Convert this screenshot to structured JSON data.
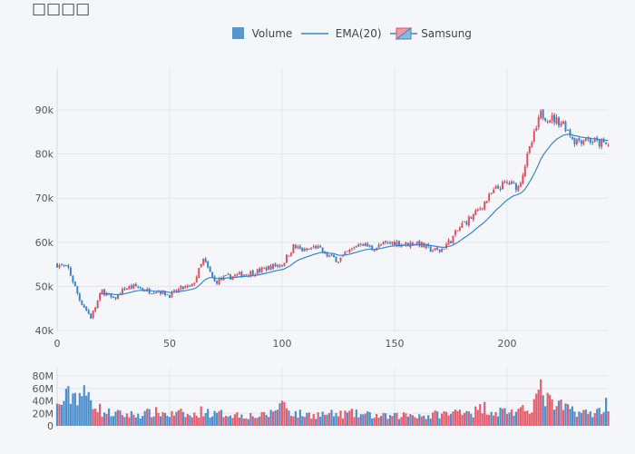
{
  "title": "□□□□",
  "legend": {
    "volume": "Volume",
    "ema": "EMA(20)",
    "price": "Samsung"
  },
  "colors": {
    "up": "#e0505f",
    "down": "#3d85c6",
    "ema": "#3d85c6",
    "grid": "#e3e5ec"
  },
  "chart_data": {
    "type": "candlestick",
    "title": "□□□□",
    "x_step": 5,
    "close_samples_k": [
      55,
      54,
      47,
      43,
      49,
      47,
      49.5,
      50,
      49,
      49,
      48,
      49.5,
      50,
      56,
      51,
      52,
      52.5,
      53,
      53.5,
      54.5,
      55,
      59,
      58,
      59,
      57,
      56,
      58,
      60,
      58.5,
      59.5,
      60,
      59.5,
      60,
      58.5,
      58,
      60.5,
      64,
      66,
      69,
      72,
      73.5,
      72.5,
      81,
      89,
      88,
      87,
      83,
      83.5,
      82.5,
      82
    ],
    "volume_samples_M": [
      30,
      48,
      52,
      45,
      22,
      20,
      18,
      18,
      20,
      22,
      18,
      20,
      15,
      25,
      18,
      20,
      18,
      17,
      15,
      20,
      38,
      20,
      18,
      18,
      19,
      18,
      20,
      18,
      17,
      15,
      15,
      18,
      18,
      15,
      20,
      18,
      28,
      22,
      30,
      22,
      25,
      20,
      30,
      55,
      33,
      30,
      25,
      20,
      22,
      38
    ],
    "ema_period": 20,
    "xaxis": {
      "range": [
        0,
        245
      ],
      "ticks": [
        "0",
        "50",
        "100",
        "150",
        "200"
      ]
    },
    "yaxis": {
      "range": [
        40,
        98
      ],
      "ticks": [
        "40k",
        "50k",
        "60k",
        "70k",
        "80k",
        "90k"
      ]
    },
    "volume_axis": {
      "range": [
        0,
        90
      ],
      "ticks": [
        "0",
        "20M",
        "40M",
        "60M",
        "80M"
      ]
    }
  }
}
